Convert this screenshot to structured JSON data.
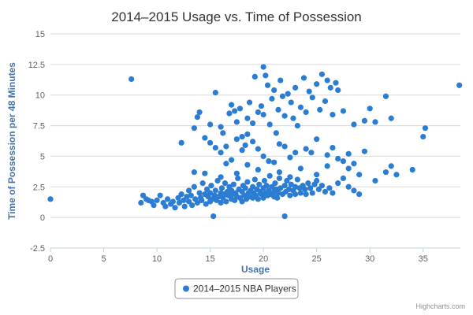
{
  "chart_data": {
    "type": "scatter",
    "title": "2014–2015 Usage vs. Time of Possession",
    "xlabel": "Usage",
    "ylabel": "Time of Possession per 48 Minutes",
    "xlim": [
      0,
      38.5
    ],
    "ylim": [
      -2.5,
      15
    ],
    "x_ticks": [
      0,
      5,
      10,
      15,
      20,
      25,
      30,
      35
    ],
    "y_ticks": [
      -2.5,
      0,
      2.5,
      5,
      7.5,
      10,
      12.5,
      15
    ],
    "legend_position": "bottom-center",
    "credits": "Highcharts.com",
    "colors": {
      "series": "#2b7cd3",
      "axis_title": "#4572a7",
      "grid": "#d8d8d8"
    },
    "series": [
      {
        "name": "2014–2015 NBA Players",
        "points": [
          [
            0,
            1.5
          ],
          [
            7.6,
            11.3
          ],
          [
            8.5,
            1.2
          ],
          [
            8.7,
            1.8
          ],
          [
            9,
            1.5
          ],
          [
            9.2,
            1.4
          ],
          [
            9.5,
            1.3
          ],
          [
            9.7,
            1.0
          ],
          [
            10,
            1.4
          ],
          [
            10.3,
            1.8
          ],
          [
            10.6,
            1.2
          ],
          [
            10.8,
            0.9
          ],
          [
            11,
            1.5
          ],
          [
            11.3,
            1.1
          ],
          [
            11.5,
            1.3
          ],
          [
            11.7,
            0.8
          ],
          [
            12,
            1.6
          ],
          [
            12.1,
            1.2
          ],
          [
            12.3,
            1.9
          ],
          [
            12.5,
            1.4
          ],
          [
            12.6,
            0.9
          ],
          [
            12.8,
            1.7
          ],
          [
            13,
            1.3
          ],
          [
            13,
            2.2
          ],
          [
            13.2,
            1.8
          ],
          [
            13.3,
            1.0
          ],
          [
            13.5,
            2.5
          ],
          [
            13.6,
            1.5
          ],
          [
            13.8,
            1.2
          ],
          [
            14,
            2.0
          ],
          [
            14.1,
            1.6
          ],
          [
            14.2,
            1.4
          ],
          [
            14.3,
            2.8
          ],
          [
            14.5,
            1.9
          ],
          [
            14.6,
            1.1
          ],
          [
            14.7,
            2.3
          ],
          [
            14.8,
            1.7
          ],
          [
            15,
            2.0
          ],
          [
            15,
            1.3
          ],
          [
            15.1,
            2.6
          ],
          [
            15.2,
            1.5
          ],
          [
            15.3,
            0.1
          ],
          [
            15.4,
            1.8
          ],
          [
            15.5,
            2.2
          ],
          [
            15.6,
            1.4
          ],
          [
            15.7,
            3.0
          ],
          [
            15.8,
            1.7
          ],
          [
            16,
            2.0
          ],
          [
            16,
            1.2
          ],
          [
            16.1,
            2.4
          ],
          [
            16.2,
            1.6
          ],
          [
            16.3,
            1.9
          ],
          [
            16.4,
            2.8
          ],
          [
            16.5,
            1.3
          ],
          [
            16.6,
            2.1
          ],
          [
            16.7,
            1.8
          ],
          [
            16.8,
            2.5
          ],
          [
            17,
            1.5
          ],
          [
            17,
            2.2
          ],
          [
            17.1,
            1.9
          ],
          [
            17.2,
            2.7
          ],
          [
            17.3,
            1.4
          ],
          [
            17.4,
            2.0
          ],
          [
            17.5,
            1.7
          ],
          [
            17.6,
            3.2
          ],
          [
            17.7,
            2.3
          ],
          [
            17.8,
            1.6
          ],
          [
            18,
            2.1
          ],
          [
            18,
            1.3
          ],
          [
            18.1,
            2.6
          ],
          [
            18.2,
            1.8
          ],
          [
            18.3,
            2.4
          ],
          [
            18.4,
            1.5
          ],
          [
            18.5,
            2.9
          ],
          [
            18.6,
            2.0
          ],
          [
            18.7,
            1.7
          ],
          [
            18.8,
            2.2
          ],
          [
            19,
            1.6
          ],
          [
            19,
            2.5
          ],
          [
            19.1,
            2.0
          ],
          [
            19.2,
            3.1
          ],
          [
            19.3,
            1.8
          ],
          [
            19.4,
            2.3
          ],
          [
            19.5,
            1.5
          ],
          [
            19.6,
            2.7
          ],
          [
            19.7,
            2.1
          ],
          [
            19.8,
            1.9
          ],
          [
            20,
            2.4
          ],
          [
            20,
            1.6
          ],
          [
            20.1,
            3.0
          ],
          [
            20.2,
            2.0
          ],
          [
            20.3,
            2.6
          ],
          [
            20.4,
            1.8
          ],
          [
            20.5,
            2.2
          ],
          [
            20.6,
            3.4
          ],
          [
            20.7,
            1.9
          ],
          [
            20.8,
            2.5
          ],
          [
            21,
            2.1
          ],
          [
            21,
            1.7
          ],
          [
            21.1,
            2.8
          ],
          [
            21.2,
            2.3
          ],
          [
            21.3,
            1.6
          ],
          [
            21.4,
            2.0
          ],
          [
            21.5,
            3.2
          ],
          [
            21.6,
            2.4
          ],
          [
            21.8,
            1.9
          ],
          [
            22,
            0.1
          ],
          [
            22,
            2.6
          ],
          [
            22.1,
            2.1
          ],
          [
            22.2,
            3.0
          ],
          [
            22.4,
            2.3
          ],
          [
            22.5,
            1.8
          ],
          [
            22.6,
            2.7
          ],
          [
            22.8,
            2.2
          ],
          [
            23,
            2.5
          ],
          [
            23,
            1.9
          ],
          [
            23.2,
            3.1
          ],
          [
            23.4,
            2.4
          ],
          [
            23.5,
            2.0
          ],
          [
            23.7,
            2.6
          ],
          [
            23.9,
            2.3
          ],
          [
            24,
            1.9
          ],
          [
            24.2,
            2.8
          ],
          [
            24.4,
            2.4
          ],
          [
            24.6,
            2.0
          ],
          [
            24.8,
            2.7
          ],
          [
            25,
            3.0
          ],
          [
            25.2,
            2.3
          ],
          [
            25.5,
            2.6
          ],
          [
            25.8,
            2.1
          ],
          [
            26.2,
            2.4
          ],
          [
            26.5,
            2.0
          ],
          [
            27,
            2.8
          ],
          [
            27.5,
            3.2
          ],
          [
            28,
            2.5
          ],
          [
            28.5,
            2.2
          ],
          [
            29,
            1.9
          ],
          [
            13.5,
            3.7
          ],
          [
            14.5,
            3.6
          ],
          [
            16,
            3.3
          ],
          [
            17.5,
            3.6
          ],
          [
            18.5,
            4.3
          ],
          [
            19.5,
            3.9
          ],
          [
            20.5,
            4.6
          ],
          [
            21.5,
            3.7
          ],
          [
            22.5,
            3.3
          ],
          [
            23.5,
            4.0
          ],
          [
            25,
            3.5
          ],
          [
            26,
            4.2
          ],
          [
            28,
            4.0
          ],
          [
            29,
            3.5
          ],
          [
            30.5,
            3.0
          ],
          [
            31.5,
            3.7
          ],
          [
            32,
            4.2
          ],
          [
            32.5,
            3.5
          ],
          [
            34,
            3.9
          ],
          [
            35,
            6.6
          ],
          [
            35.2,
            7.3
          ],
          [
            38.4,
            10.8
          ],
          [
            12.3,
            6.1
          ],
          [
            13.5,
            7.3
          ],
          [
            13.8,
            8.2
          ],
          [
            14,
            8.6
          ],
          [
            14.5,
            6.5
          ],
          [
            15,
            7.6
          ],
          [
            15.5,
            10.2
          ],
          [
            16,
            7.4
          ],
          [
            16.2,
            6.9
          ],
          [
            16.5,
            5.8
          ],
          [
            16.8,
            8.5
          ],
          [
            17,
            9.2
          ],
          [
            17.3,
            8.7
          ],
          [
            17.5,
            7.8
          ],
          [
            17.8,
            8.9
          ],
          [
            18,
            6.6
          ],
          [
            18.3,
            5.9
          ],
          [
            18.5,
            8.1
          ],
          [
            18.7,
            9.4
          ],
          [
            19,
            7.7
          ],
          [
            19.2,
            11.5
          ],
          [
            19.5,
            8.6
          ],
          [
            19.8,
            9.1
          ],
          [
            20,
            8.4
          ],
          [
            20,
            12.3
          ],
          [
            20.2,
            11.6
          ],
          [
            20.4,
            10.8
          ],
          [
            20.6,
            7.6
          ],
          [
            20.8,
            9.7
          ],
          [
            21,
            10.4
          ],
          [
            21.2,
            6.9
          ],
          [
            21.4,
            8.8
          ],
          [
            21.6,
            11.2
          ],
          [
            21.8,
            9.9
          ],
          [
            22,
            8.3
          ],
          [
            22.3,
            10.1
          ],
          [
            22.6,
            9.4
          ],
          [
            22.8,
            8.1
          ],
          [
            23,
            10.6
          ],
          [
            23.2,
            7.5
          ],
          [
            23.5,
            9.0
          ],
          [
            23.8,
            11.4
          ],
          [
            24,
            8.6
          ],
          [
            24.3,
            10.3
          ],
          [
            24.6,
            9.8
          ],
          [
            25,
            10.9
          ],
          [
            25.3,
            8.8
          ],
          [
            25.5,
            11.7
          ],
          [
            25.8,
            9.5
          ],
          [
            26,
            11.2
          ],
          [
            26.3,
            10.6
          ],
          [
            26.5,
            8.4
          ],
          [
            26.8,
            11.0
          ],
          [
            27,
            10.4
          ],
          [
            27.5,
            8.7
          ],
          [
            28.5,
            7.6
          ],
          [
            29.5,
            7.9
          ],
          [
            30,
            8.9
          ],
          [
            30.5,
            7.8
          ],
          [
            31.5,
            9.9
          ],
          [
            32,
            8.1
          ],
          [
            15,
            6.1
          ],
          [
            16,
            5.3
          ],
          [
            17,
            4.7
          ],
          [
            18,
            5.5
          ],
          [
            19,
            6.2
          ],
          [
            20,
            5.0
          ],
          [
            21,
            4.5
          ],
          [
            22,
            5.8
          ],
          [
            23,
            5.3
          ],
          [
            24,
            5.6
          ],
          [
            25,
            6.4
          ],
          [
            26,
            5.1
          ],
          [
            26.5,
            5.7
          ],
          [
            27,
            4.8
          ],
          [
            28,
            5.2
          ],
          [
            28.5,
            4.4
          ],
          [
            29.5,
            5.4
          ],
          [
            15.5,
            5.7
          ],
          [
            17.5,
            6.4
          ],
          [
            19.5,
            5.6
          ],
          [
            22.5,
            4.9
          ],
          [
            24.5,
            5.3
          ],
          [
            27.5,
            4.6
          ],
          [
            16.5,
            4.4
          ],
          [
            18.5,
            6.8
          ],
          [
            21.5,
            6.0
          ]
        ]
      }
    ]
  }
}
